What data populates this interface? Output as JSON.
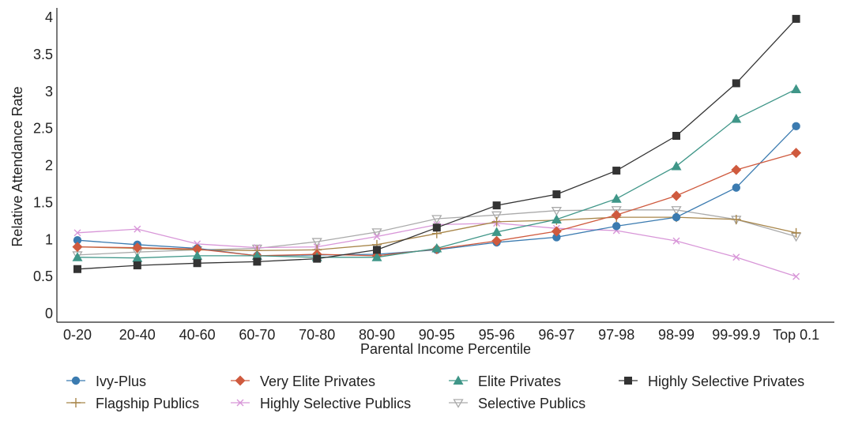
{
  "chart_data": {
    "type": "line",
    "title": "",
    "xlabel": "Parental Income Percentile",
    "ylabel": "Relative Attendance Rate",
    "categories": [
      "0-20",
      "20-40",
      "40-60",
      "60-70",
      "70-80",
      "80-90",
      "90-95",
      "95-96",
      "96-97",
      "97-98",
      "98-99",
      "99-99.9",
      "Top 0.1"
    ],
    "ylim": [
      0,
      4
    ],
    "yticks": [
      0,
      0.5,
      1,
      1.5,
      2,
      2.5,
      3,
      3.5,
      4
    ],
    "ytick_labels": [
      "0",
      "0.5",
      "1",
      "1.5",
      "2",
      "2.5",
      "3",
      "3.5",
      "4"
    ],
    "grid": false,
    "legend_position": "bottom",
    "series": [
      {
        "name": "Ivy-Plus",
        "color": "#3b7bb0",
        "marker": "circle",
        "values": [
          0.99,
          0.93,
          0.88,
          0.78,
          0.79,
          0.8,
          0.86,
          0.96,
          1.03,
          1.18,
          1.3,
          1.7,
          2.53
        ]
      },
      {
        "name": "Very Elite Privates",
        "color": "#cf5a3e",
        "marker": "diamond",
        "values": [
          0.9,
          0.89,
          0.87,
          0.78,
          0.8,
          0.78,
          0.87,
          0.98,
          1.11,
          1.33,
          1.59,
          1.94,
          2.17
        ]
      },
      {
        "name": "Elite Privates",
        "color": "#3f9688",
        "marker": "triangle",
        "values": [
          0.76,
          0.75,
          0.78,
          0.78,
          0.76,
          0.76,
          0.88,
          1.1,
          1.27,
          1.55,
          1.99,
          2.63,
          3.03
        ]
      },
      {
        "name": "Highly Selective Privates",
        "color": "#333333",
        "marker": "square",
        "values": [
          0.6,
          0.65,
          0.68,
          0.7,
          0.74,
          0.86,
          1.16,
          1.46,
          1.61,
          1.93,
          2.4,
          3.11,
          3.98
        ]
      },
      {
        "name": "Flagship Publics",
        "color": "#a8864a",
        "marker": "plus",
        "values": [
          0.9,
          0.88,
          0.86,
          0.85,
          0.86,
          0.93,
          1.08,
          1.24,
          1.26,
          1.3,
          1.3,
          1.27,
          1.09
        ]
      },
      {
        "name": "Highly Selective Publics",
        "color": "#d896d8",
        "marker": "x",
        "values": [
          1.09,
          1.14,
          0.94,
          0.89,
          0.9,
          1.04,
          1.2,
          1.22,
          1.15,
          1.12,
          0.98,
          0.76,
          0.5
        ]
      },
      {
        "name": "Selective Publics",
        "color": "#aaaaaa",
        "marker": "tri-down",
        "values": [
          0.79,
          0.83,
          0.86,
          0.88,
          0.97,
          1.1,
          1.28,
          1.33,
          1.39,
          1.4,
          1.4,
          1.27,
          1.04
        ]
      }
    ]
  }
}
